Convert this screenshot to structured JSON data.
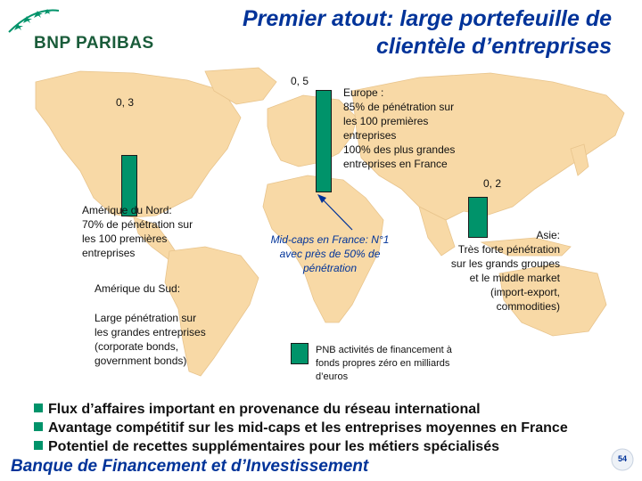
{
  "logo": {
    "name": "BNP PARIBAS",
    "icon": "stars-logo-icon"
  },
  "title": {
    "line1": "Premier atout: large portefeuille de",
    "line2": "clientèle d’entreprises"
  },
  "colors": {
    "bar": "#00936a",
    "title": "#003399",
    "map": "#f8d9a6"
  },
  "chart_data": {
    "type": "bar",
    "categories": [
      "Amérique du Nord",
      "Europe",
      "Asie"
    ],
    "values": [
      0.3,
      0.5,
      0.2
    ],
    "value_labels": [
      "0, 3",
      "0, 5",
      "0, 2"
    ]
  },
  "regions": {
    "north_america": [
      "Amérique du Nord:",
      "70% de pénétration sur",
      "les 100 premières",
      "entreprises"
    ],
    "south_america_title": "Amérique du Sud:",
    "south_america": [
      "Large pénétration sur",
      "les grandes entreprises",
      "(corporate bonds,",
      "government bonds)"
    ],
    "europe": [
      "Europe :",
      "85% de pénétration sur",
      "les 100 premières",
      "entreprises",
      "100% des plus grandes",
      "entreprises en France"
    ],
    "asia": [
      "Asie:",
      "Très forte pénétration",
      "sur les grands groupes",
      "et le middle market",
      "(import-export,",
      "commodities)"
    ],
    "midcaps": [
      "Mid-caps en France: N°1",
      "avec près de 50% de",
      "pénétration"
    ]
  },
  "legend": [
    "PNB activités de financement à",
    "fonds propres zéro en milliards",
    "d’euros"
  ],
  "bullets": [
    "Flux d’affaires important en provenance du réseau international",
    "Avantage compétitif sur les mid-caps et les entreprises moyennes en France",
    "Potentiel de recettes supplémentaires pour les métiers spécialisés"
  ],
  "footer": "Banque de Financement et d’Investissement",
  "page_number": "54"
}
